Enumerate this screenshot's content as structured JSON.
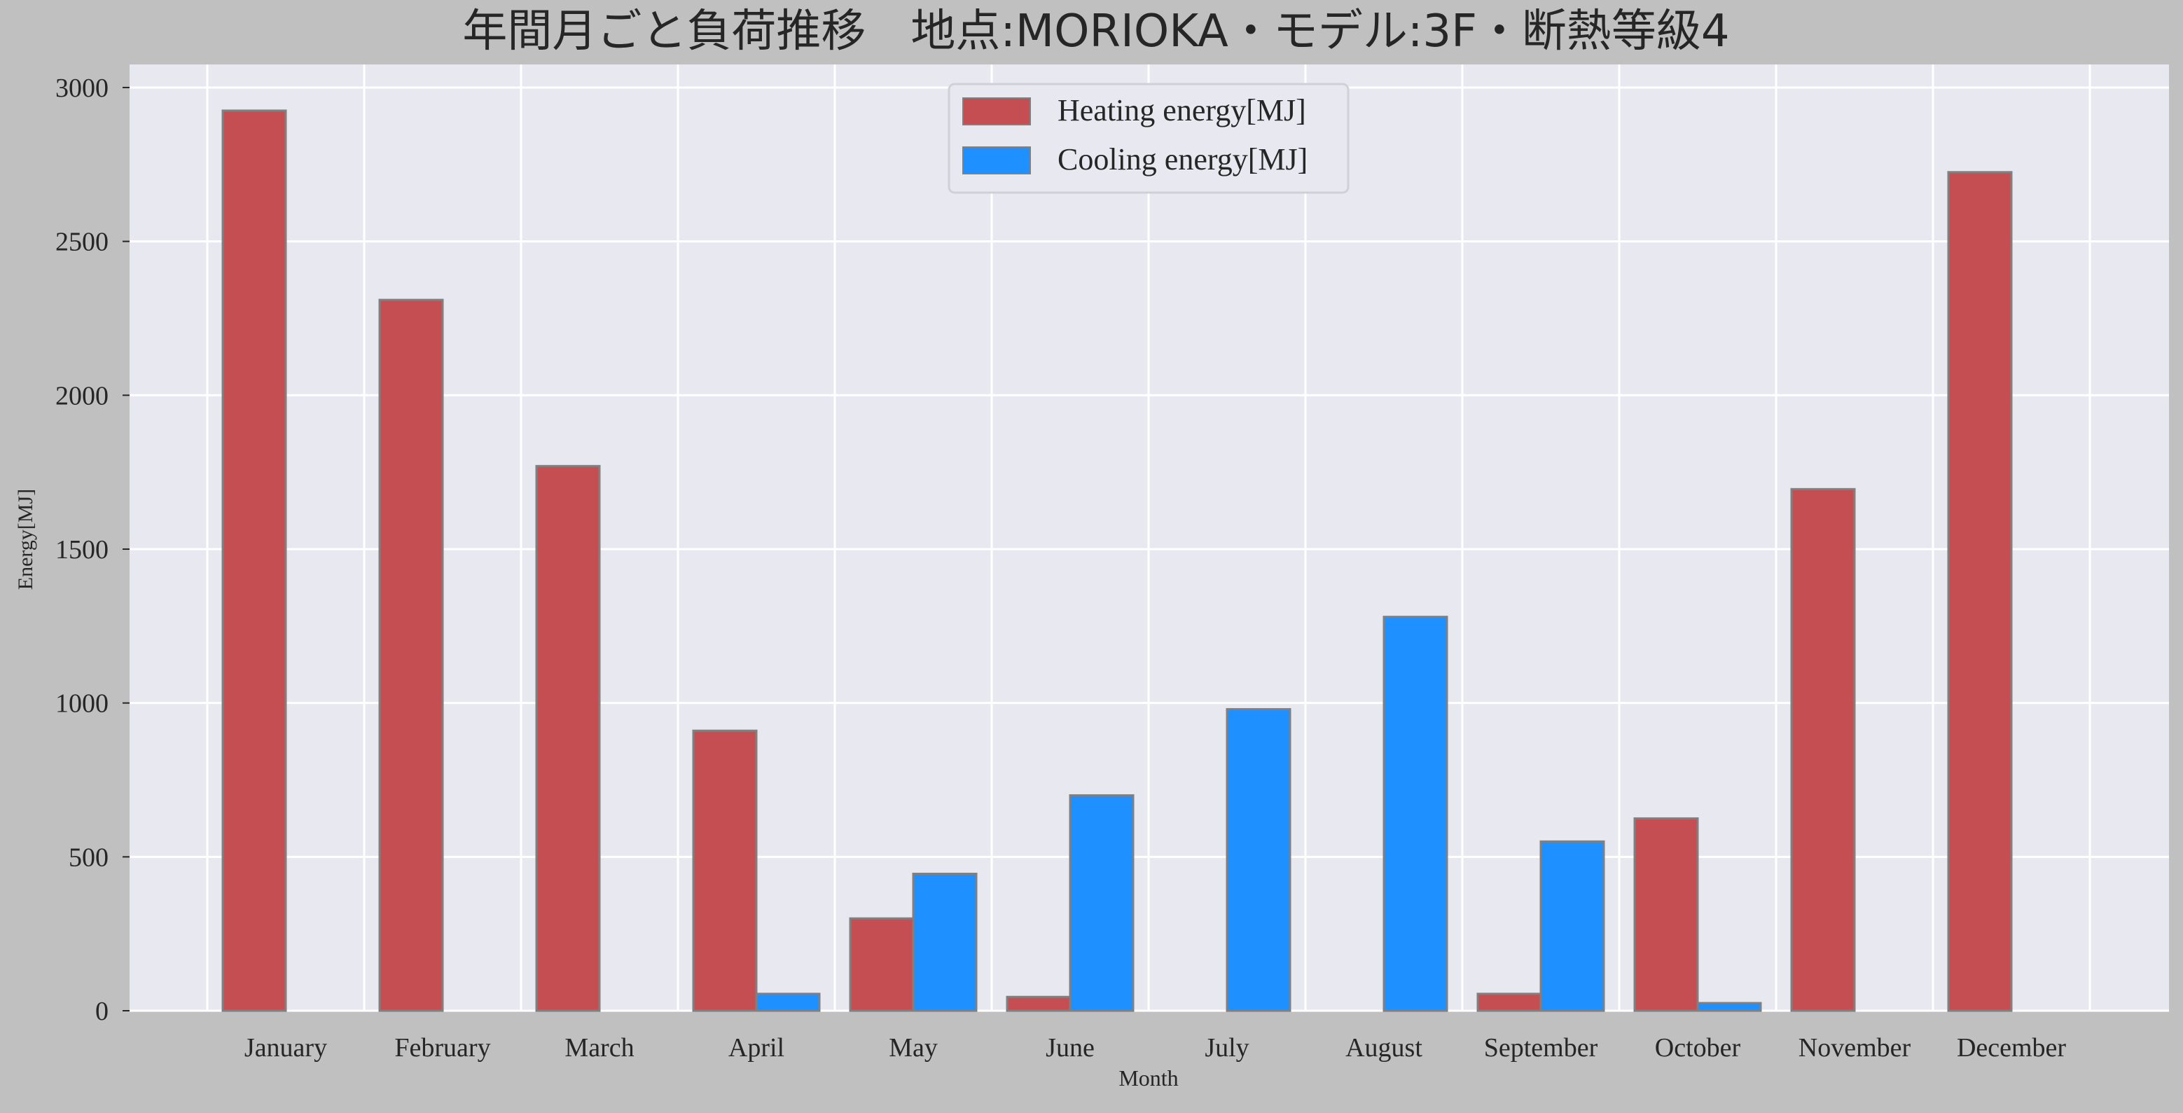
{
  "chart_data": {
    "type": "bar",
    "title": "年間月ごと負荷推移　地点:MORIOKA・モデル:3F・断熱等級4",
    "xlabel": "Month",
    "ylabel": "Energy[MJ]",
    "categories": [
      "January",
      "February",
      "March",
      "April",
      "May",
      "June",
      "July",
      "August",
      "September",
      "October",
      "November",
      "December"
    ],
    "series": [
      {
        "name": "Heating energy[MJ]",
        "color": "#c44e52",
        "values": [
          2925,
          2310,
          1770,
          910,
          300,
          45,
          0,
          0,
          55,
          625,
          1695,
          2725
        ]
      },
      {
        "name": "Cooling energy[MJ]",
        "color": "#1e90ff",
        "values": [
          0,
          0,
          0,
          55,
          445,
          700,
          980,
          1280,
          550,
          25,
          0,
          0
        ]
      }
    ],
    "ylim": [
      0,
      3075
    ],
    "yticks": [
      0,
      500,
      1000,
      1500,
      2000,
      2500,
      3000
    ],
    "grid": true,
    "legend_position": "top-center",
    "plot_background": "#e8e8f0",
    "figure_background": "#c0c0c0",
    "bar_edge_color": "#808080"
  }
}
